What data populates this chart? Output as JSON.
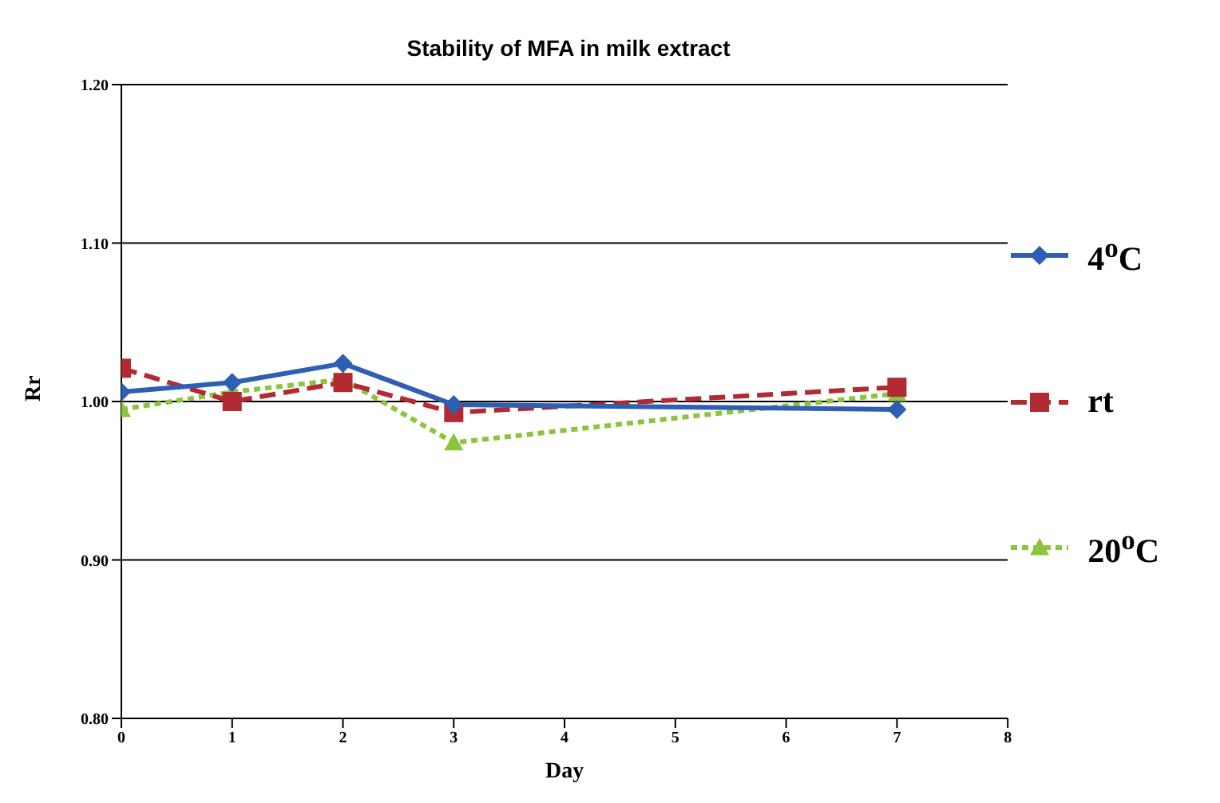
{
  "chart_data": {
    "type": "line",
    "title": "Stability of MFA in milk extract",
    "xlabel": "Day",
    "ylabel": "Rr",
    "x": [
      0,
      1,
      2,
      3,
      7
    ],
    "series": [
      {
        "name": "4$^{o}$C",
        "color": "#2f5fb3",
        "values": [
          1.006,
          1.012,
          1.024,
          0.998,
          0.995
        ],
        "marker": "diamond",
        "line_style": "solid"
      },
      {
        "name": "rt",
        "color": "#b22a32",
        "values": [
          1.021,
          1.0,
          1.012,
          0.993,
          1.009
        ],
        "marker": "square",
        "line_style": "dashed"
      },
      {
        "name": "20$^{o}$C",
        "color": "#8cc43c",
        "values": [
          0.995,
          1.006,
          1.014,
          0.974,
          1.005
        ],
        "marker": "triangle",
        "line_style": "dotted"
      }
    ],
    "xlim": [
      0,
      8
    ],
    "xticks": [
      0,
      1,
      2,
      3,
      4,
      5,
      6,
      7,
      8
    ],
    "ylim": [
      0.8,
      1.2
    ],
    "yticks": [
      {
        "value": 0.8,
        "label": "0.80"
      },
      {
        "value": 0.9,
        "label": "0.90"
      },
      {
        "value": 1.0,
        "label": "1.00"
      },
      {
        "value": 1.1,
        "label": "1.10"
      },
      {
        "value": 1.2,
        "label": "1.20"
      }
    ],
    "grid": "y",
    "legend": "right"
  }
}
